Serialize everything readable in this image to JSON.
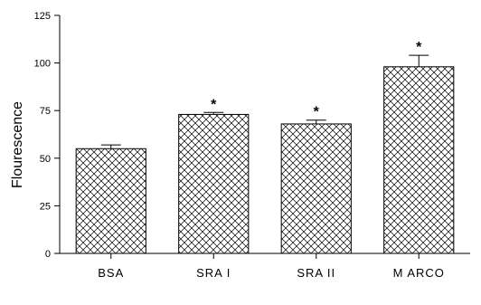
{
  "chart_data": {
    "type": "bar",
    "title": "",
    "xlabel": "",
    "ylabel": "Flourescence",
    "categories": [
      "BSA",
      "SRA I",
      "SRA II",
      "M ARCO"
    ],
    "values": [
      55,
      73,
      68,
      98
    ],
    "errors": [
      2,
      1,
      2,
      6
    ],
    "annotations": [
      "",
      "*",
      "*",
      "*"
    ],
    "ylim": [
      0,
      125
    ],
    "yticks": [
      0,
      25,
      50,
      75,
      100,
      125
    ],
    "grid": false,
    "bar_fill": "crosshatch",
    "colors": {
      "bar_stroke": "#000000",
      "hatch": "#000000",
      "background": "#ffffff"
    }
  }
}
